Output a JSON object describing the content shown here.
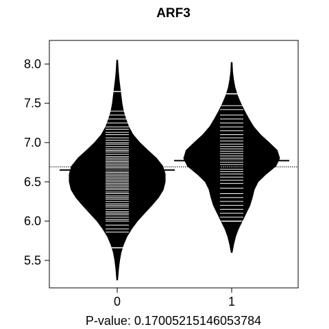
{
  "chart_data": {
    "type": "beanplot",
    "title": "ARF3",
    "xlabel": "P-value: 0.17005215146053784",
    "ylabel": "",
    "categories": [
      "0",
      "1"
    ],
    "ylim": [
      5.15,
      8.3
    ],
    "yticks": [
      5.5,
      6.0,
      6.5,
      7.0,
      7.5,
      8.0
    ],
    "ytick_labels": [
      "5.5",
      "6.0",
      "6.5",
      "7.0",
      "7.5",
      "8.0"
    ],
    "overall_mean": 6.69,
    "series": [
      {
        "category": "0",
        "mean": 6.65,
        "min": 5.25,
        "max": 8.05,
        "density": [
          [
            5.25,
            0.01
          ],
          [
            5.4,
            0.03
          ],
          [
            5.5,
            0.05
          ],
          [
            5.6,
            0.08
          ],
          [
            5.7,
            0.13
          ],
          [
            5.8,
            0.2
          ],
          [
            5.9,
            0.3
          ],
          [
            6.0,
            0.42
          ],
          [
            6.1,
            0.57
          ],
          [
            6.2,
            0.72
          ],
          [
            6.3,
            0.86
          ],
          [
            6.4,
            0.96
          ],
          [
            6.5,
            1.0
          ],
          [
            6.6,
            1.0
          ],
          [
            6.7,
            0.95
          ],
          [
            6.8,
            0.82
          ],
          [
            6.9,
            0.64
          ],
          [
            7.0,
            0.47
          ],
          [
            7.1,
            0.33
          ],
          [
            7.2,
            0.24
          ],
          [
            7.3,
            0.18
          ],
          [
            7.4,
            0.13
          ],
          [
            7.5,
            0.1
          ],
          [
            7.6,
            0.08
          ],
          [
            7.7,
            0.06
          ],
          [
            7.8,
            0.04
          ],
          [
            7.9,
            0.025
          ],
          [
            8.05,
            0.01
          ]
        ],
        "observations": [
          5.66,
          5.86,
          5.9,
          5.95,
          6.0,
          6.02,
          6.05,
          6.08,
          6.1,
          6.12,
          6.15,
          6.18,
          6.2,
          6.22,
          6.25,
          6.28,
          6.3,
          6.32,
          6.35,
          6.37,
          6.4,
          6.42,
          6.44,
          6.46,
          6.48,
          6.5,
          6.52,
          6.54,
          6.56,
          6.58,
          6.6,
          6.62,
          6.64,
          6.66,
          6.68,
          6.7,
          6.72,
          6.74,
          6.76,
          6.78,
          6.8,
          6.82,
          6.85,
          6.88,
          6.9,
          6.92,
          6.95,
          6.98,
          7.0,
          7.03,
          7.06,
          7.1,
          7.13,
          7.17,
          7.2,
          7.25,
          7.3,
          7.35,
          7.4,
          7.65
        ]
      },
      {
        "category": "1",
        "mean": 6.77,
        "min": 5.6,
        "max": 8.02,
        "density": [
          [
            5.6,
            0.01
          ],
          [
            5.7,
            0.04
          ],
          [
            5.8,
            0.08
          ],
          [
            5.9,
            0.14
          ],
          [
            6.0,
            0.22
          ],
          [
            6.1,
            0.3
          ],
          [
            6.2,
            0.38
          ],
          [
            6.3,
            0.43
          ],
          [
            6.4,
            0.47
          ],
          [
            6.5,
            0.55
          ],
          [
            6.6,
            0.72
          ],
          [
            6.7,
            0.92
          ],
          [
            6.8,
            1.0
          ],
          [
            6.9,
            0.95
          ],
          [
            7.0,
            0.78
          ],
          [
            7.1,
            0.6
          ],
          [
            7.2,
            0.46
          ],
          [
            7.3,
            0.36
          ],
          [
            7.4,
            0.27
          ],
          [
            7.5,
            0.19
          ],
          [
            7.6,
            0.12
          ],
          [
            7.7,
            0.07
          ],
          [
            7.8,
            0.04
          ],
          [
            7.9,
            0.02
          ],
          [
            8.02,
            0.01
          ]
        ],
        "observations": [
          6.0,
          6.05,
          6.1,
          6.15,
          6.2,
          6.25,
          6.3,
          6.35,
          6.42,
          6.48,
          6.52,
          6.56,
          6.6,
          6.63,
          6.66,
          6.69,
          6.72,
          6.75,
          6.78,
          6.8,
          6.83,
          6.86,
          6.89,
          6.92,
          6.95,
          6.98,
          7.02,
          7.06,
          7.1,
          7.15,
          7.2,
          7.25,
          7.3,
          7.35,
          7.42,
          7.47,
          7.62
        ]
      }
    ],
    "grid": false,
    "legend": "none",
    "colors": {
      "bean": "#000000",
      "lines": "#ffffff",
      "background": "#ffffff"
    }
  }
}
